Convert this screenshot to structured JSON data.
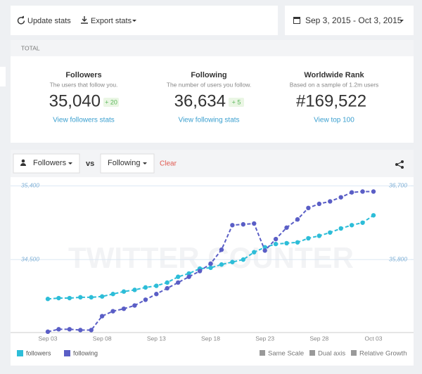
{
  "toolbar": {
    "update": "Update stats",
    "export": "Export stats",
    "date_range": "Sep 3, 2015 - Oct 3, 2015"
  },
  "totals": {
    "header": "TOTAL",
    "items": [
      {
        "title": "Followers",
        "subtitle": "The users that follow you.",
        "value": "35,040",
        "change": "+ 20",
        "link": "View followers stats"
      },
      {
        "title": "Following",
        "subtitle": "The number of users you follow.",
        "value": "36,634",
        "change": "+ 5",
        "link": "View following stats"
      },
      {
        "title": "Worldwide Rank",
        "subtitle": "Based on a sample of 1.2m users",
        "value": "#169,522",
        "link": "View top 100"
      }
    ]
  },
  "controls": {
    "metric_a": "Followers",
    "vs": "vs",
    "metric_b": "Following",
    "clear": "Clear"
  },
  "chart_data": {
    "type": "line",
    "watermark": "TWITTER COUNTER",
    "categories": [
      "Sep 03",
      null,
      null,
      null,
      null,
      "Sep 08",
      null,
      null,
      null,
      null,
      "Sep 13",
      null,
      null,
      null,
      null,
      "Sep 18",
      null,
      null,
      null,
      null,
      "Sep 23",
      null,
      null,
      null,
      null,
      "Sep 28",
      null,
      null,
      null,
      null,
      "Oct 03"
    ],
    "series": [
      {
        "name": "followers",
        "color": "#2dbdd8",
        "values": [
          34020,
          34030,
          34030,
          34040,
          34040,
          34050,
          34080,
          34110,
          34130,
          34160,
          34180,
          34220,
          34290,
          34330,
          34390,
          34400,
          34440,
          34470,
          34500,
          34590,
          34650,
          34690,
          34700,
          34710,
          34760,
          34790,
          34830,
          34880,
          34920,
          34950,
          35040
        ]
      },
      {
        "name": "following",
        "color": "#5a5ec6",
        "axis": "y2",
        "values": [
          34920,
          34950,
          34950,
          34940,
          34940,
          35110,
          35170,
          35200,
          35240,
          35310,
          35380,
          35450,
          35520,
          35590,
          35660,
          35750,
          35920,
          36220,
          36230,
          36240,
          35910,
          36050,
          36190,
          36290,
          36430,
          36480,
          36510,
          36560,
          36620,
          36630,
          36630
        ]
      }
    ],
    "ylim": [
      33610,
      35480
    ],
    "yticks": [
      {
        "value": 34500,
        "label": "34,500"
      },
      {
        "value": 35400,
        "label": "35,400"
      }
    ],
    "y2lim": [
      34910,
      36780
    ],
    "y2ticks": [
      {
        "value": 35800,
        "label": "35,800"
      },
      {
        "value": 36700,
        "label": "36,700"
      }
    ],
    "grid": true,
    "legend": "bottom-left"
  },
  "options": [
    "Same Scale",
    "Dual axis",
    "Relative Growth"
  ]
}
